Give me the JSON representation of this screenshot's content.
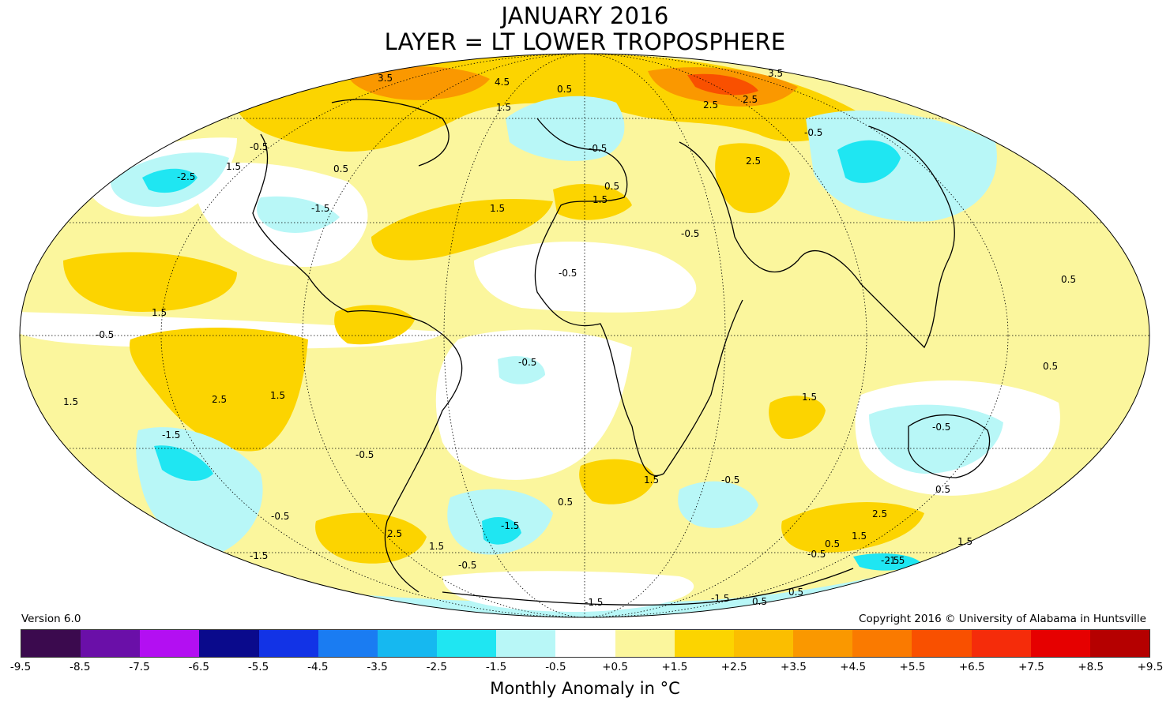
{
  "header": {
    "title": "JANUARY 2016",
    "subtitle": "LAYER = LT LOWER TROPOSPHERE"
  },
  "footer": {
    "version": "Version 6.0",
    "copyright": "Copyright 2016 © University of Alabama in Huntsville"
  },
  "colorbar": {
    "label": "Monthly Anomaly in °C",
    "ticks": [
      "-9.5",
      "-8.5",
      "-7.5",
      "-6.5",
      "-5.5",
      "-4.5",
      "-3.5",
      "-2.5",
      "-1.5",
      "-0.5",
      "+0.5",
      "+1.5",
      "+2.5",
      "+3.5",
      "+4.5",
      "+5.5",
      "+6.5",
      "+7.5",
      "+8.5",
      "+9.5"
    ],
    "colors": [
      "#3b0a4e",
      "#6a0fa8",
      "#b30ff2",
      "#0a0a8c",
      "#1233e6",
      "#1a7cf2",
      "#16b8f0",
      "#1fe6f2",
      "#b8f7f7",
      "#ffffff",
      "#fbf69d",
      "#fcd400",
      "#fbbe00",
      "#fa9800",
      "#fa7a00",
      "#f95000",
      "#f52c0a",
      "#e60000",
      "#b50000",
      "#c4a400"
    ]
  },
  "map": {
    "contour_labels": [
      "3.5",
      "4.5",
      "1.5",
      "0.5",
      "0.5",
      "1.5",
      "-0.5",
      "-2.5",
      "1.5",
      "-1.5",
      "-0.5",
      "0.5",
      "1.5",
      "2.5",
      "0.5",
      "1.5",
      "-0.5",
      "-0.5",
      "-0.5",
      "1.5",
      "2.5",
      "1.5",
      "-1.5",
      "-0.5",
      "-0.5",
      "1.5",
      "2.5",
      "1.5",
      "-1.5",
      "-0.5",
      "-0.5",
      "-1.5",
      "0.5",
      "1.5",
      "-0.5",
      "-1.5",
      "0.5",
      "2.5",
      "-2.5",
      "0.5",
      "0.5",
      "-0.5",
      "-1.5",
      "-1.5",
      "-0.5",
      "1.5",
      "-0.5",
      "3.5",
      "2.5",
      "2.5",
      "0.5",
      "1.5",
      "0.5"
    ]
  }
}
